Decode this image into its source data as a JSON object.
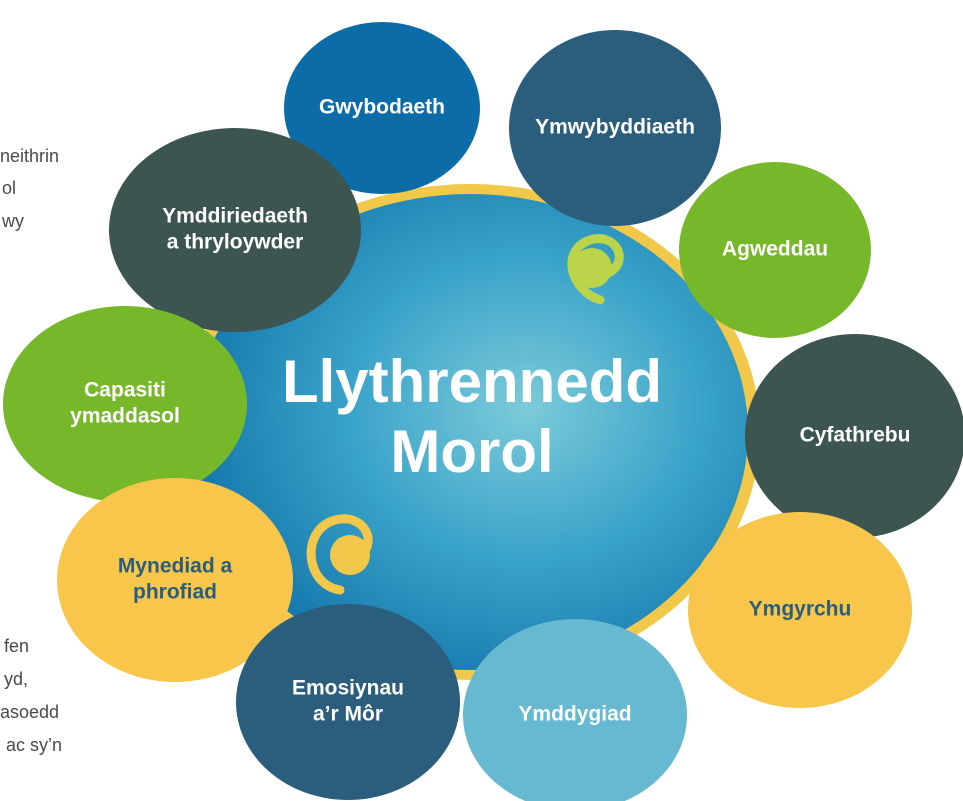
{
  "side_text": {
    "top": [
      "neithrin",
      "ol",
      "wy"
    ],
    "bottom": [
      "fen",
      "yd,",
      "asoedd",
      "ac sy’n"
    ]
  },
  "center": {
    "lines": [
      "Llythrennedd",
      "Morol"
    ]
  },
  "nodes": [
    {
      "lines": [
        "Gwybodaeth"
      ]
    },
    {
      "lines": [
        "Ymwybyddiaeth"
      ]
    },
    {
      "lines": [
        "Ymddiriedaeth",
        "a thryloywder"
      ]
    },
    {
      "lines": [
        "Agweddau"
      ]
    },
    {
      "lines": [
        "Capasiti",
        "ymaddasol"
      ]
    },
    {
      "lines": [
        "Cyfathrebu"
      ]
    },
    {
      "lines": [
        "Mynediad a",
        "phrofiad"
      ]
    },
    {
      "lines": [
        "Ymgyrchu"
      ]
    },
    {
      "lines": [
        "Emosiynau",
        "a’r Môr"
      ]
    },
    {
      "lines": [
        "Ymddygiad"
      ]
    }
  ]
}
